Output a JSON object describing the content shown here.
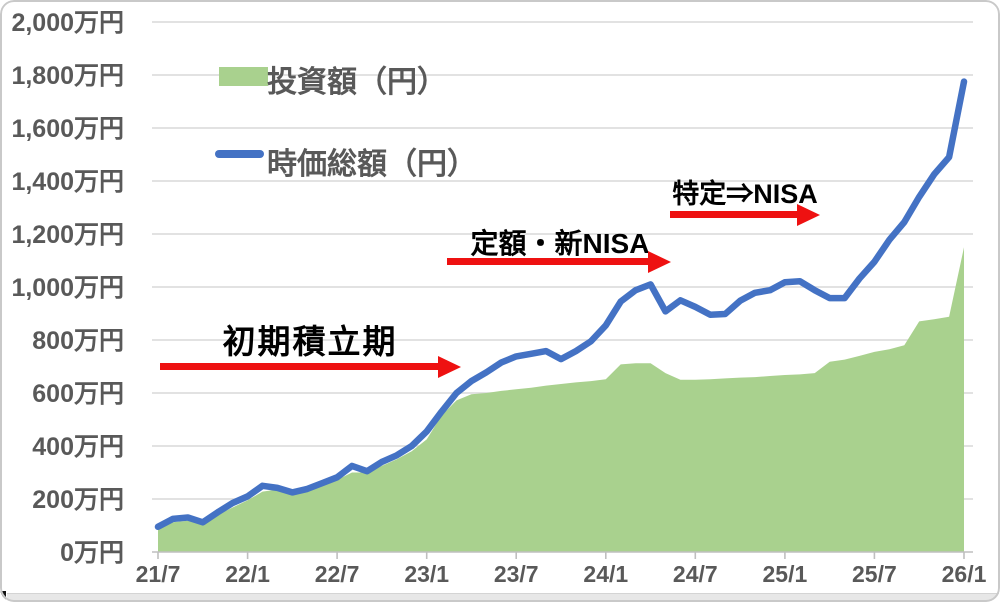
{
  "chart_data": {
    "type": "combo-area-line",
    "title": "",
    "unit": "万円",
    "ylim": [
      0,
      2000
    ],
    "y_step": 200,
    "grid": "horizontal",
    "legend_position": "inside-top-left",
    "x": [
      "21/7",
      "21/8",
      "21/9",
      "21/10",
      "21/11",
      "21/12",
      "22/1",
      "22/2",
      "22/3",
      "22/4",
      "22/5",
      "22/6",
      "22/7",
      "22/8",
      "22/9",
      "22/10",
      "22/11",
      "22/12",
      "23/1",
      "23/2",
      "23/3",
      "23/4",
      "23/5",
      "23/6",
      "23/7",
      "23/8",
      "23/9",
      "23/10",
      "23/11",
      "23/12",
      "24/1",
      "24/2",
      "24/3",
      "24/4",
      "24/5",
      "24/6",
      "24/7",
      "24/8",
      "24/9",
      "24/10",
      "24/11",
      "24/12",
      "25/1",
      "25/2",
      "25/3",
      "25/4",
      "25/5",
      "25/6",
      "25/7",
      "25/8",
      "25/9",
      "25/10",
      "25/11",
      "25/12",
      "26/1"
    ],
    "x_axis_tick_labels": [
      "21/7",
      "22/1",
      "22/7",
      "23/1",
      "23/7",
      "24/1",
      "24/7",
      "25/1",
      "25/7",
      "26/1"
    ],
    "y_axis_tick_labels": [
      "0万円",
      "200万円",
      "400万円",
      "600万円",
      "800万円",
      "1,000万円",
      "1,200万円",
      "1,400万円",
      "1,600万円",
      "1,800万円",
      "2,000万円"
    ],
    "series": [
      {
        "name": "投資額（円）",
        "type": "area",
        "color": "#A9D18E",
        "values": [
          85,
          112,
          118,
          112,
          140,
          168,
          195,
          228,
          236,
          228,
          232,
          252,
          272,
          300,
          300,
          325,
          350,
          380,
          425,
          515,
          572,
          595,
          600,
          608,
          614,
          620,
          628,
          634,
          640,
          645,
          652,
          708,
          712,
          712,
          675,
          650,
          650,
          652,
          655,
          658,
          660,
          664,
          668,
          670,
          675,
          718,
          726,
          740,
          755,
          765,
          780,
          870,
          878,
          888,
          1150
        ]
      },
      {
        "name": "時価総額（円）",
        "type": "line",
        "color": "#4472C4",
        "stroke_width": 6.5,
        "values": [
          95,
          125,
          130,
          112,
          150,
          185,
          210,
          250,
          242,
          225,
          238,
          260,
          282,
          325,
          305,
          340,
          365,
          400,
          455,
          530,
          600,
          645,
          678,
          715,
          738,
          748,
          758,
          728,
          758,
          795,
          855,
          945,
          988,
          1010,
          908,
          950,
          925,
          895,
          898,
          948,
          978,
          988,
          1018,
          1022,
          988,
          958,
          958,
          1032,
          1095,
          1178,
          1245,
          1340,
          1425,
          1490,
          1775
        ]
      }
    ],
    "annotations": [
      {
        "text": "初期積立期",
        "arrow_from_x": "21/7",
        "arrow_to_x": "23/3",
        "arrow_at_value": 700
      },
      {
        "text": "定額・新NISA",
        "arrow_from_x": "23/3",
        "arrow_to_x": "24/6",
        "arrow_at_value": 1095
      },
      {
        "text": "特定⇒NISA",
        "arrow_from_x": "24/6",
        "arrow_to_x": "25/4",
        "arrow_at_value": 1270
      }
    ],
    "colors": {
      "arrow": "#ee1111",
      "annotation_text": "#000000",
      "axis_text": "#595959",
      "gridline": "#d9d9d9",
      "axis_line": "#bfbfbf",
      "background": "#ffffff",
      "frame_border": "#c9c9c9"
    }
  }
}
